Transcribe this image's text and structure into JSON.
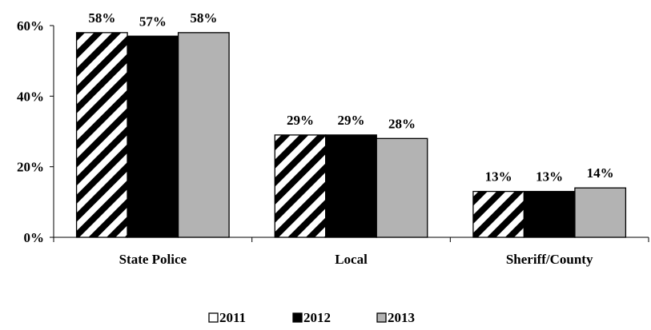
{
  "chart_data": {
    "type": "bar",
    "categories": [
      "State Police",
      "Local",
      "Sheriff/County"
    ],
    "series": [
      {
        "name": "2011",
        "values": [
          58,
          29,
          13
        ],
        "labels": [
          "58%",
          "29%",
          "13%"
        ],
        "fill": "hatch"
      },
      {
        "name": "2012",
        "values": [
          57,
          29,
          13
        ],
        "labels": [
          "57%",
          "29%",
          "13%"
        ],
        "color": "#000000"
      },
      {
        "name": "2013",
        "values": [
          58,
          28,
          14
        ],
        "labels": [
          "58%",
          "28%",
          "14%"
        ],
        "color": "#b3b3b3"
      }
    ],
    "yticks": [
      {
        "value": 0,
        "label": "0%"
      },
      {
        "value": 20,
        "label": "20%"
      },
      {
        "value": 40,
        "label": "40%"
      },
      {
        "value": 60,
        "label": "60%"
      }
    ],
    "ylim": [
      0,
      60
    ],
    "grid": false,
    "legend": "bottom",
    "title": "",
    "xlabel": "",
    "ylabel": ""
  }
}
